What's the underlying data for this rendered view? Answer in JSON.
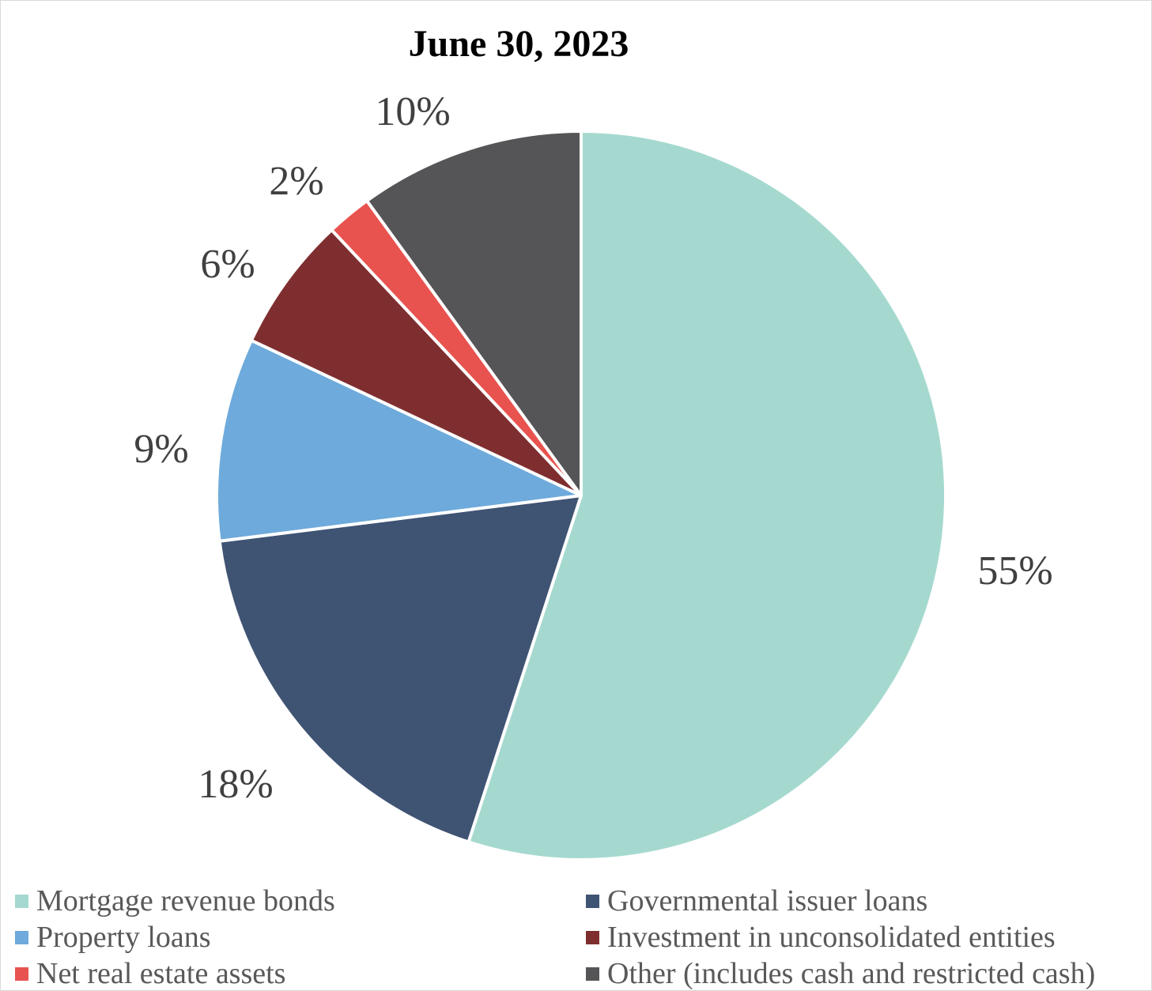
{
  "chart_data": {
    "type": "pie",
    "title": "June 30, 2023",
    "categories": [
      "Mortgage revenue bonds",
      "Governmental issuer loans",
      "Property loans",
      "Investment in unconsolidated entities",
      "Net real estate assets",
      "Other (includes cash and restricted cash)"
    ],
    "values": [
      55,
      18,
      9,
      6,
      2,
      10
    ],
    "labels": [
      "55%",
      "18%",
      "9%",
      "6%",
      "2%",
      "10%"
    ],
    "colors": [
      "#a5d9cf",
      "#3f5373",
      "#6eaadb",
      "#7f2e30",
      "#e8534f",
      "#555557"
    ],
    "legend_position": "bottom",
    "start_angle": "12 o'clock",
    "direction": "clockwise"
  }
}
